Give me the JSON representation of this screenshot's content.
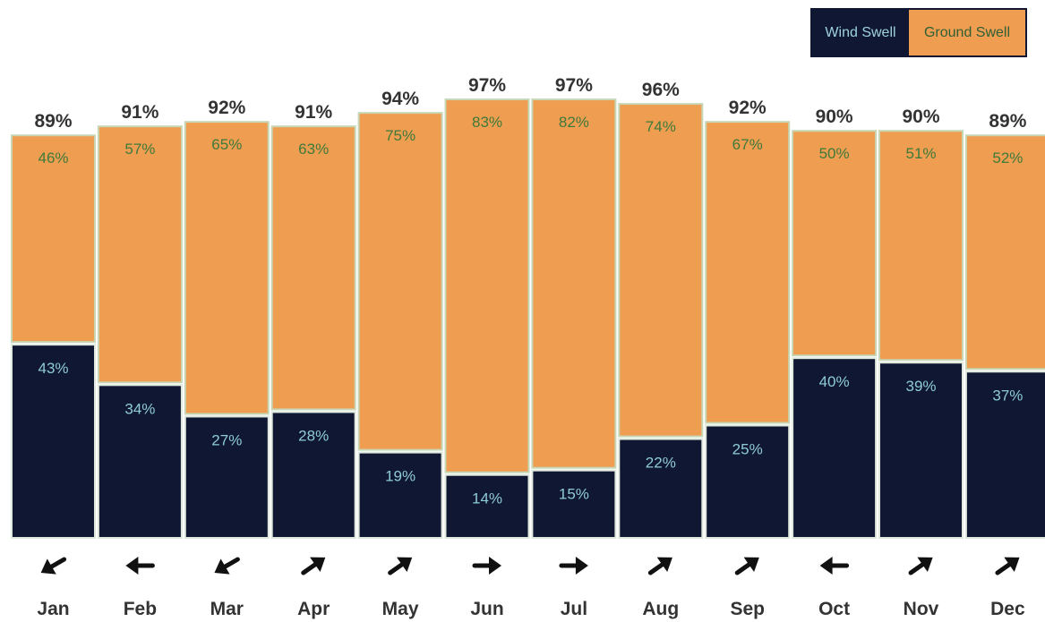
{
  "legend": {
    "wind_label": "Wind Swell",
    "ground_label": "Ground Swell"
  },
  "colors": {
    "wind": "#0f1733",
    "ground": "#ee9d51",
    "wind_text": "#8fcbd6",
    "ground_text": "#3e7a3a",
    "total_text": "#333333",
    "month_text": "#333333"
  },
  "chart_data": {
    "type": "bar",
    "stacked": true,
    "categories": [
      "Jan",
      "Feb",
      "Mar",
      "Apr",
      "May",
      "Jun",
      "Jul",
      "Aug",
      "Sep",
      "Oct",
      "Nov",
      "Dec"
    ],
    "series": [
      {
        "name": "Wind Swell",
        "values": [
          43,
          34,
          27,
          28,
          19,
          14,
          15,
          22,
          25,
          40,
          39,
          37
        ]
      },
      {
        "name": "Ground Swell",
        "values": [
          46,
          57,
          65,
          63,
          75,
          83,
          82,
          74,
          67,
          50,
          51,
          52
        ]
      }
    ],
    "totals": [
      89,
      91,
      92,
      91,
      94,
      97,
      97,
      96,
      92,
      90,
      90,
      89
    ],
    "data_label_suffix": "%",
    "direction_icons": [
      "arrow-sw",
      "arrow-w",
      "arrow-sw",
      "arrow-ne",
      "arrow-ne",
      "arrow-e",
      "arrow-e",
      "arrow-ne",
      "arrow-ne",
      "arrow-w",
      "arrow-ne",
      "arrow-ne"
    ],
    "ylim": [
      0,
      100
    ],
    "grid": false,
    "legend_position": "top-right"
  }
}
